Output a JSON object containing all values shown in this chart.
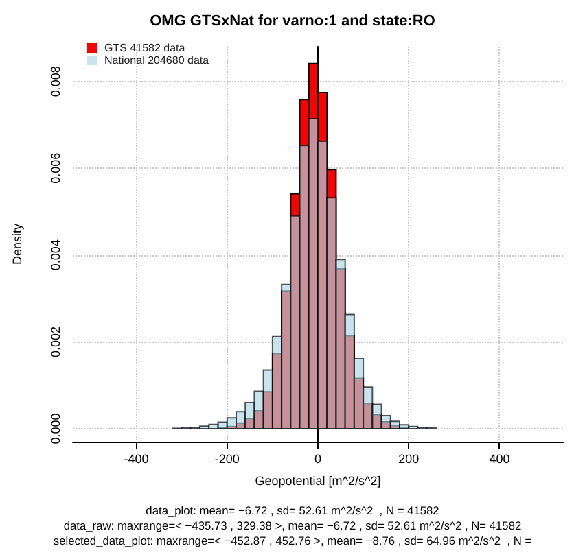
{
  "chart_data": {
    "type": "histogram",
    "title": "OMG GTSxNat for varno:1 and state:RO",
    "xlabel": "Geopotential [m^2/s^2]",
    "ylabel": "Density",
    "annotations": [
      "data_plot: mean= −6.72 , sd= 52.61 m^2/s^2  , N = 41582",
      "data_raw: maxrange=< −435.73 , 329.38 >, mean= −6.72 , sd= 52.61 m^2/s^2 , N= 41582",
      "selected_data_plot: maxrange=< −452.87 , 452.76 >, mean= −8.76 , sd= 64.96 m^2/s^2  , N ="
    ],
    "bins": [
      -500,
      -480,
      -460,
      -440,
      -420,
      -400,
      -380,
      -360,
      -340,
      -320,
      -300,
      -280,
      -260,
      -240,
      -220,
      -200,
      -180,
      -160,
      -140,
      -120,
      -100,
      -80,
      -60,
      -40,
      -20,
      0,
      20,
      40,
      60,
      80,
      100,
      120,
      140,
      160,
      180,
      200,
      220,
      240,
      260,
      280,
      300,
      320,
      340,
      360,
      380,
      400,
      420,
      440,
      460,
      480,
      500
    ],
    "series": [
      {
        "name": "GTS 41582 data",
        "color": "#ff0000",
        "values": [
          0,
          0,
          0,
          0,
          0,
          0,
          0,
          0,
          0,
          0,
          0,
          0,
          0,
          null,
          3e-05,
          5e-05,
          0.00013,
          0.00023,
          0.00042,
          0.00085,
          0.00173,
          0.00317,
          0.00541,
          0.00758,
          0.00841,
          0.00774,
          0.00597,
          0.00368,
          0.00214,
          0.00116,
          0.00058,
          0.00032,
          0.00016,
          7e-05,
          3e-05,
          null,
          0,
          0,
          0,
          0,
          0,
          0,
          0,
          0,
          0,
          0,
          0,
          0,
          0,
          0
        ]
      },
      {
        "name": "National 204680 data",
        "color": "#add8e6",
        "values": [
          0,
          0,
          0,
          0,
          0,
          0,
          0,
          0,
          0,
          1e-05,
          2e-05,
          3e-05,
          6e-05,
          0.0001,
          0.00015,
          0.00025,
          0.00039,
          0.0006,
          0.00086,
          0.00135,
          0.00212,
          0.00332,
          0.0049,
          0.00652,
          0.00714,
          0.00662,
          0.00532,
          0.0039,
          0.00263,
          0.00161,
          0.00096,
          0.00056,
          0.0003,
          0.00017,
          9e-05,
          5e-05,
          3e-05,
          2e-05,
          0,
          0,
          0,
          0,
          0,
          0,
          0,
          0,
          0,
          0,
          0,
          0
        ]
      }
    ],
    "xlim": [
      -540,
      540
    ],
    "xticks": [
      -400,
      -200,
      0,
      200,
      400
    ],
    "ylim": [
      -0.0003,
      0.0088
    ],
    "yticks": [
      {
        "value": 0,
        "label": "0.000"
      },
      {
        "value": 0.002,
        "label": "0.002"
      },
      {
        "value": 0.004,
        "label": "0.004"
      },
      {
        "value": 0.006,
        "label": "0.006"
      },
      {
        "value": 0.008,
        "label": "0.008"
      }
    ],
    "grid": true,
    "legend": "top left"
  }
}
